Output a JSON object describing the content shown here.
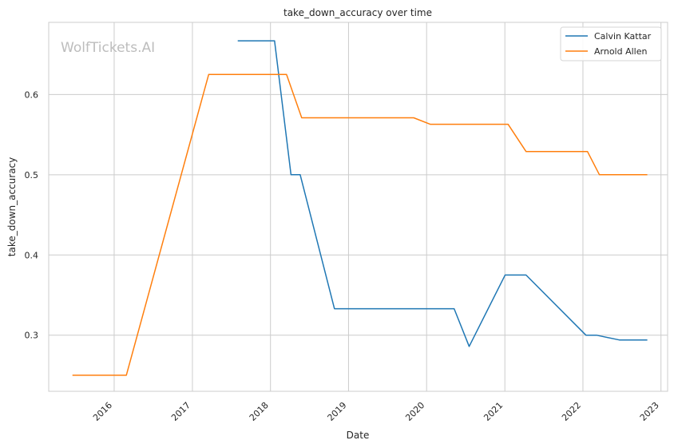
{
  "chart_data": {
    "type": "line",
    "title": "take_down_accuracy over time",
    "xlabel": "Date",
    "ylabel": "take_down_accuracy",
    "watermark": "WolfTickets.AI",
    "x_ticks": [
      "2016",
      "2017",
      "2018",
      "2019",
      "2020",
      "2021",
      "2022",
      "2023"
    ],
    "y_ticks": [
      "0.3",
      "0.4",
      "0.5",
      "0.6"
    ],
    "xlim": [
      "2015-03-01",
      "2023-02-01"
    ],
    "ylim": [
      0.23,
      0.69
    ],
    "grid": true,
    "legend_position": "top-right",
    "series": [
      {
        "name": "Calvin Kattar",
        "color": "#1f77b4",
        "points": [
          [
            "2017-08-01",
            0.667
          ],
          [
            "2018-01-20",
            0.667
          ],
          [
            "2018-04-07",
            0.5
          ],
          [
            "2018-05-20",
            0.5
          ],
          [
            "2018-10-27",
            0.333
          ],
          [
            "2020-05-09",
            0.333
          ],
          [
            "2020-07-18",
            0.286
          ],
          [
            "2021-01-02",
            0.375
          ],
          [
            "2021-04-10",
            0.375
          ],
          [
            "2022-01-15",
            0.3
          ],
          [
            "2022-03-05",
            0.3
          ],
          [
            "2022-06-20",
            0.294
          ],
          [
            "2022-10-29",
            0.294
          ]
        ]
      },
      {
        "name": "Arnold Allen",
        "color": "#ff7f0e",
        "points": [
          [
            "2015-06-20",
            0.25
          ],
          [
            "2016-02-27",
            0.25
          ],
          [
            "2017-03-18",
            0.625
          ],
          [
            "2018-03-17",
            0.625
          ],
          [
            "2018-05-27",
            0.571
          ],
          [
            "2019-11-02",
            0.571
          ],
          [
            "2020-01-18",
            0.563
          ],
          [
            "2021-01-16",
            0.563
          ],
          [
            "2021-04-10",
            0.529
          ],
          [
            "2022-01-22",
            0.529
          ],
          [
            "2022-03-19",
            0.5
          ],
          [
            "2022-10-29",
            0.5
          ]
        ]
      }
    ]
  }
}
